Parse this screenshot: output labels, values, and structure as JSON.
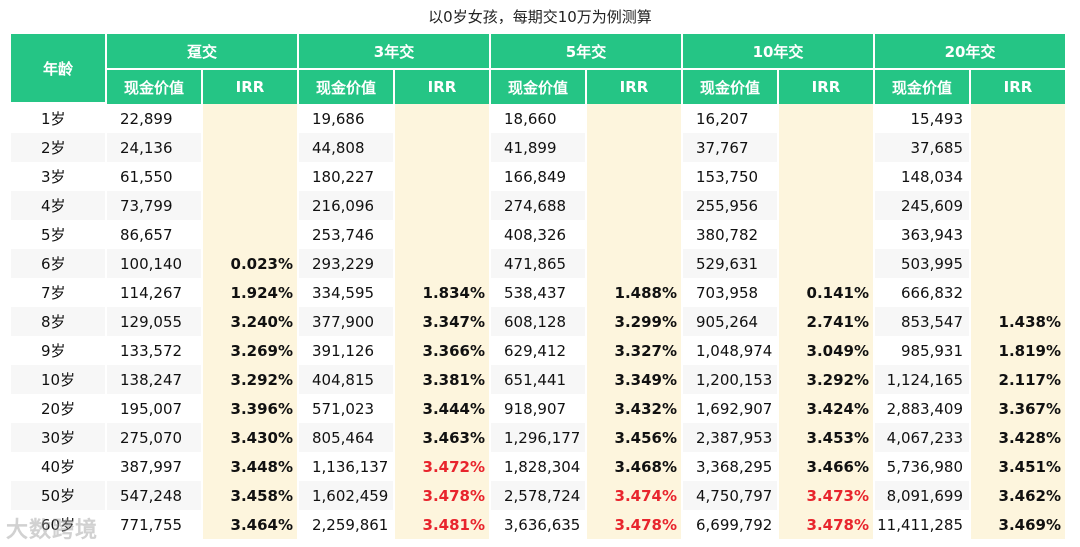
{
  "title": "以0岁女孩，每期交10万为例测算",
  "header": {
    "age": "年龄",
    "groups": [
      "趸交",
      "3年交",
      "5年交",
      "10年交",
      "20年交"
    ],
    "cash": "现金价值",
    "irr": "IRR"
  },
  "rows": [
    {
      "age": "1岁",
      "c": [
        {
          "v": "22,899",
          "i": ""
        },
        {
          "v": "19,686",
          "i": ""
        },
        {
          "v": "18,660",
          "i": ""
        },
        {
          "v": "16,207",
          "i": ""
        },
        {
          "v": "15,493",
          "i": ""
        }
      ]
    },
    {
      "age": "2岁",
      "c": [
        {
          "v": "24,136",
          "i": ""
        },
        {
          "v": "44,808",
          "i": ""
        },
        {
          "v": "41,899",
          "i": ""
        },
        {
          "v": "37,767",
          "i": ""
        },
        {
          "v": "37,685",
          "i": ""
        }
      ]
    },
    {
      "age": "3岁",
      "c": [
        {
          "v": "61,550",
          "i": ""
        },
        {
          "v": "180,227",
          "i": ""
        },
        {
          "v": "166,849",
          "i": ""
        },
        {
          "v": "153,750",
          "i": ""
        },
        {
          "v": "148,034",
          "i": ""
        }
      ]
    },
    {
      "age": "4岁",
      "c": [
        {
          "v": "73,799",
          "i": ""
        },
        {
          "v": "216,096",
          "i": ""
        },
        {
          "v": "274,688",
          "i": ""
        },
        {
          "v": "255,956",
          "i": ""
        },
        {
          "v": "245,609",
          "i": ""
        }
      ]
    },
    {
      "age": "5岁",
      "c": [
        {
          "v": "86,657",
          "i": ""
        },
        {
          "v": "253,746",
          "i": ""
        },
        {
          "v": "408,326",
          "i": ""
        },
        {
          "v": "380,782",
          "i": ""
        },
        {
          "v": "363,943",
          "i": ""
        }
      ]
    },
    {
      "age": "6岁",
      "c": [
        {
          "v": "100,140",
          "i": "0.023%"
        },
        {
          "v": "293,229",
          "i": ""
        },
        {
          "v": "471,865",
          "i": ""
        },
        {
          "v": "529,631",
          "i": ""
        },
        {
          "v": "503,995",
          "i": ""
        }
      ]
    },
    {
      "age": "7岁",
      "c": [
        {
          "v": "114,267",
          "i": "1.924%"
        },
        {
          "v": "334,595",
          "i": "1.834%"
        },
        {
          "v": "538,437",
          "i": "1.488%"
        },
        {
          "v": "703,958",
          "i": "0.141%"
        },
        {
          "v": "666,832",
          "i": ""
        }
      ]
    },
    {
      "age": "8岁",
      "c": [
        {
          "v": "129,055",
          "i": "3.240%"
        },
        {
          "v": "377,900",
          "i": "3.347%"
        },
        {
          "v": "608,128",
          "i": "3.299%"
        },
        {
          "v": "905,264",
          "i": "2.741%"
        },
        {
          "v": "853,547",
          "i": "1.438%"
        }
      ]
    },
    {
      "age": "9岁",
      "c": [
        {
          "v": "133,572",
          "i": "3.269%"
        },
        {
          "v": "391,126",
          "i": "3.366%"
        },
        {
          "v": "629,412",
          "i": "3.327%"
        },
        {
          "v": "1,048,974",
          "i": "3.049%"
        },
        {
          "v": "985,931",
          "i": "1.819%"
        }
      ]
    },
    {
      "age": "10岁",
      "c": [
        {
          "v": "138,247",
          "i": "3.292%"
        },
        {
          "v": "404,815",
          "i": "3.381%"
        },
        {
          "v": "651,441",
          "i": "3.349%"
        },
        {
          "v": "1,200,153",
          "i": "3.292%"
        },
        {
          "v": "1,124,165",
          "i": "2.117%"
        }
      ]
    },
    {
      "age": "20岁",
      "c": [
        {
          "v": "195,007",
          "i": "3.396%"
        },
        {
          "v": "571,023",
          "i": "3.444%"
        },
        {
          "v": "918,907",
          "i": "3.432%"
        },
        {
          "v": "1,692,907",
          "i": "3.424%"
        },
        {
          "v": "2,883,409",
          "i": "3.367%"
        }
      ]
    },
    {
      "age": "30岁",
      "c": [
        {
          "v": "275,070",
          "i": "3.430%"
        },
        {
          "v": "805,464",
          "i": "3.463%"
        },
        {
          "v": "1,296,177",
          "i": "3.456%"
        },
        {
          "v": "2,387,953",
          "i": "3.453%"
        },
        {
          "v": "4,067,233",
          "i": "3.428%"
        }
      ]
    },
    {
      "age": "40岁",
      "c": [
        {
          "v": "387,997",
          "i": "3.448%"
        },
        {
          "v": "1,136,137",
          "i": "3.472%",
          "red": true
        },
        {
          "v": "1,828,304",
          "i": "3.468%"
        },
        {
          "v": "3,368,295",
          "i": "3.466%"
        },
        {
          "v": "5,736,980",
          "i": "3.451%"
        }
      ]
    },
    {
      "age": "50岁",
      "c": [
        {
          "v": "547,248",
          "i": "3.458%"
        },
        {
          "v": "1,602,459",
          "i": "3.478%",
          "red": true
        },
        {
          "v": "2,578,724",
          "i": "3.474%",
          "red": true
        },
        {
          "v": "4,750,797",
          "i": "3.473%",
          "red": true
        },
        {
          "v": "8,091,699",
          "i": "3.462%"
        }
      ]
    },
    {
      "age": "60岁",
      "c": [
        {
          "v": "771,755",
          "i": "3.464%"
        },
        {
          "v": "2,259,861",
          "i": "3.481%",
          "red": true
        },
        {
          "v": "3,636,635",
          "i": "3.478%",
          "red": true
        },
        {
          "v": "6,699,792",
          "i": "3.478%",
          "red": true
        },
        {
          "v": "11,411,285",
          "i": "3.469%"
        }
      ]
    }
  ],
  "watermark": "大数跨境"
}
